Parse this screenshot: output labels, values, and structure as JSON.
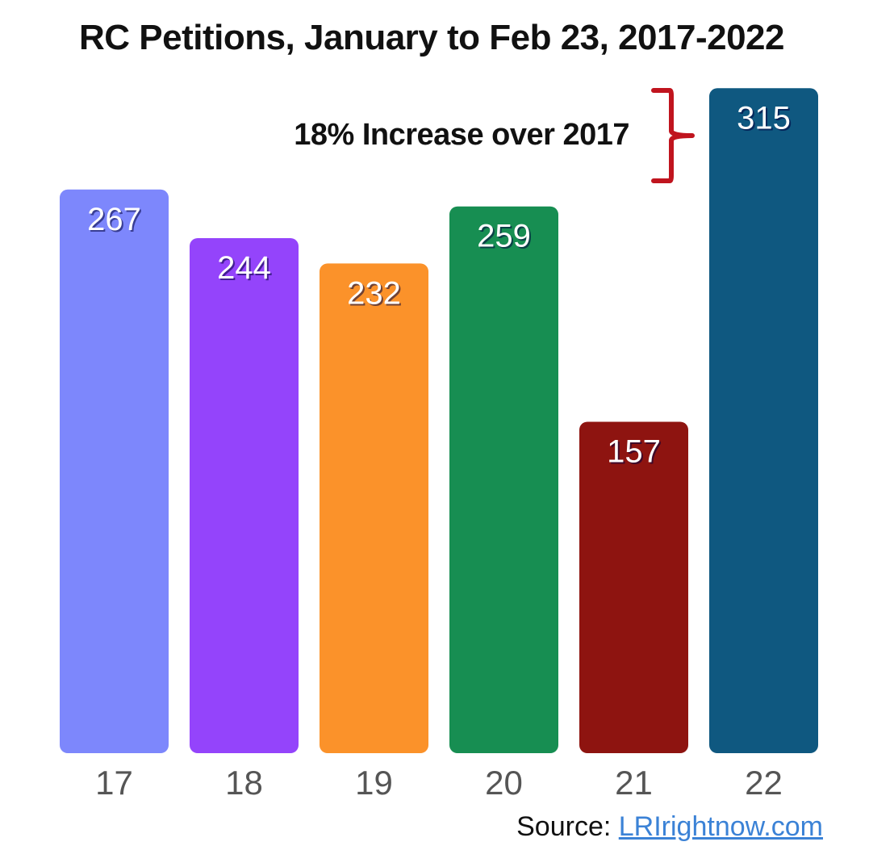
{
  "colors": {
    "bars": [
      "#7d87fc",
      "#9444fb",
      "#fb922a",
      "#178e52",
      "#8e1410",
      "#0f5880"
    ],
    "brace": "#c0141e",
    "link": "#3b82d6"
  },
  "source": {
    "label": "Source:",
    "link_text": "LRIrightnow.com"
  },
  "chart_data": {
    "type": "bar",
    "title": "RC Petitions, January to Feb 23, 2017-2022",
    "categories": [
      "17",
      "18",
      "19",
      "20",
      "21",
      "22"
    ],
    "values": [
      267,
      244,
      232,
      259,
      157,
      315
    ],
    "data_labels": [
      "267",
      "244",
      "232",
      "259",
      "157",
      "315"
    ],
    "annotation": "18% Increase over 2017",
    "xlabel": "",
    "ylabel": "",
    "grid": false,
    "legend": "none"
  }
}
